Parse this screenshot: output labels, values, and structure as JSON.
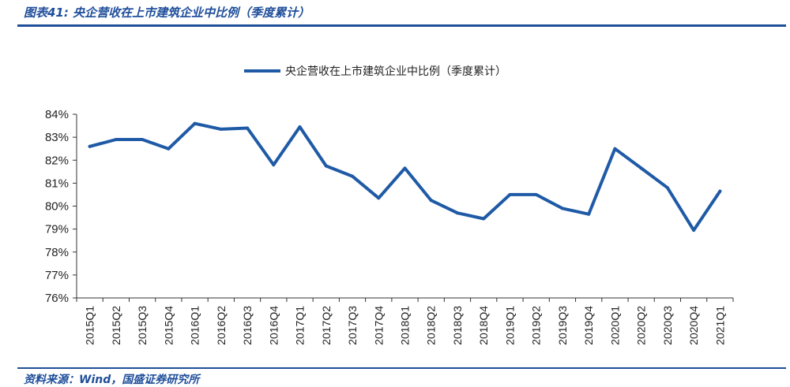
{
  "figure": {
    "title": "图表41:  央企营收在上市建筑企业中比例（季度累计）",
    "source": "资料来源：Wind，国盛证券研究所"
  },
  "colors": {
    "accent": "#1f4e9a",
    "line": "#1f5aa6",
    "axis": "#333333"
  },
  "chart_data": {
    "type": "line",
    "title": "",
    "xlabel": "",
    "ylabel": "",
    "categories": [
      "2015Q1",
      "2015Q2",
      "2015Q3",
      "2015Q4",
      "2016Q1",
      "2016Q2",
      "2016Q3",
      "2016Q4",
      "2017Q1",
      "2017Q2",
      "2017Q3",
      "2017Q4",
      "2018Q1",
      "2018Q2",
      "2018Q3",
      "2018Q4",
      "2019Q1",
      "2019Q2",
      "2019Q3",
      "2019Q4",
      "2020Q1",
      "2020Q2",
      "2020Q3",
      "2020Q4",
      "2021Q1"
    ],
    "series": [
      {
        "name": "央企营收在上市建筑企业中比例（季度累计）",
        "values": [
          82.6,
          82.9,
          82.9,
          82.5,
          83.6,
          83.35,
          83.4,
          81.8,
          83.45,
          81.75,
          81.3,
          80.35,
          81.65,
          80.25,
          79.7,
          79.45,
          80.5,
          80.5,
          79.9,
          79.65,
          82.5,
          81.65,
          80.8,
          78.95,
          80.65
        ]
      }
    ],
    "ylim": [
      76,
      84
    ],
    "yticks": [
      "76%",
      "77%",
      "78%",
      "79%",
      "80%",
      "81%",
      "82%",
      "83%",
      "84%"
    ],
    "grid": false,
    "legend_position": "top-center"
  }
}
